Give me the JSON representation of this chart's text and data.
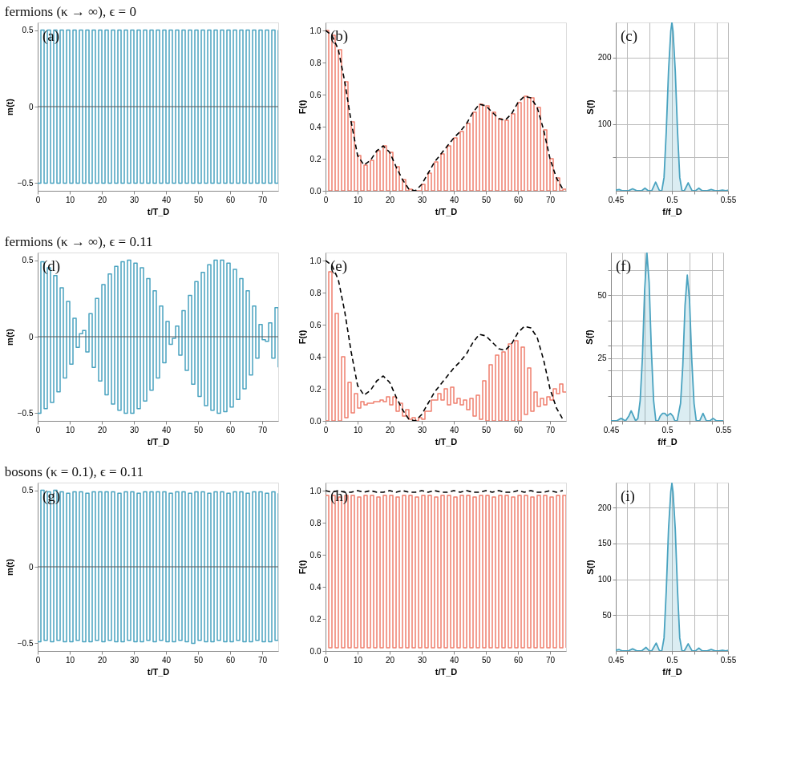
{
  "chart_data": [
    {
      "type": "step",
      "title": "fermions (κ → ∞), ϵ = 0",
      "xlabel": "t/T_D",
      "ylabel": "m(t)",
      "annotations": [
        "(a)"
      ],
      "xlim": [
        0,
        75
      ],
      "xticks": [
        0,
        10,
        20,
        30,
        40,
        50,
        60,
        70
      ],
      "ylim": [
        -0.55,
        0.55
      ],
      "yticks": [
        {
          "value": -0.5,
          "label": "−0.5"
        },
        0,
        0.5
      ],
      "ref_lines": [
        {
          "axis": "y",
          "value": 0,
          "color": "#555555"
        }
      ],
      "x": [
        0,
        1,
        2,
        3,
        4,
        5,
        6,
        7,
        8,
        9,
        10,
        11,
        12,
        13,
        14,
        15,
        16,
        17,
        18,
        19,
        20,
        21,
        22,
        23,
        24,
        25,
        26,
        27,
        28,
        29,
        30,
        31,
        32,
        33,
        34,
        35,
        36,
        37,
        38,
        39,
        40,
        41,
        42,
        43,
        44,
        45,
        46,
        47,
        48,
        49,
        50,
        51,
        52,
        53,
        54,
        55,
        56,
        57,
        58,
        59,
        60,
        61,
        62,
        63,
        64,
        65,
        66,
        67,
        68,
        69,
        70,
        71,
        72,
        73,
        74,
        75
      ],
      "series": [
        {
          "color": "#4aa3c0",
          "values": [
            -0.5,
            0.5,
            -0.5,
            0.5,
            -0.5,
            0.5,
            -0.5,
            0.5,
            -0.5,
            0.5,
            -0.5,
            0.5,
            -0.5,
            0.5,
            -0.5,
            0.5,
            -0.5,
            0.5,
            -0.5,
            0.5,
            -0.5,
            0.5,
            -0.5,
            0.5,
            -0.5,
            0.5,
            -0.5,
            0.5,
            -0.5,
            0.5,
            -0.5,
            0.5,
            -0.5,
            0.5,
            -0.5,
            0.5,
            -0.5,
            0.5,
            -0.5,
            0.5,
            -0.5,
            0.5,
            -0.5,
            0.5,
            -0.5,
            0.5,
            -0.5,
            0.5,
            -0.5,
            0.5,
            -0.5,
            0.5,
            -0.5,
            0.5,
            -0.5,
            0.5,
            -0.5,
            0.5,
            -0.5,
            0.5,
            -0.5,
            0.5,
            -0.5,
            0.5,
            -0.5,
            0.5,
            -0.5,
            0.5,
            -0.5,
            0.5,
            -0.5,
            0.5,
            -0.5,
            0.5,
            -0.5,
            0.5
          ]
        }
      ]
    },
    {
      "type": "step",
      "xlabel": "t/T_D",
      "ylabel": "F(t)",
      "annotations": [
        "(b)"
      ],
      "xlim": [
        0,
        75
      ],
      "xticks": [
        0,
        10,
        20,
        30,
        40,
        50,
        60,
        70
      ],
      "ylim": [
        0,
        1.05
      ],
      "yticks": [
        {
          "value": 0,
          "label": "0.0"
        },
        0.2,
        0.4,
        0.6,
        0.8,
        {
          "value": 1,
          "label": "1.0"
        }
      ],
      "x": [
        0,
        1,
        2,
        3,
        4,
        5,
        6,
        7,
        8,
        9,
        10,
        11,
        12,
        13,
        14,
        15,
        16,
        17,
        18,
        19,
        20,
        21,
        22,
        23,
        24,
        25,
        26,
        27,
        28,
        29,
        30,
        31,
        32,
        33,
        34,
        35,
        36,
        37,
        38,
        39,
        40,
        41,
        42,
        43,
        44,
        45,
        46,
        47,
        48,
        49,
        50,
        51,
        52,
        53,
        54,
        55,
        56,
        57,
        58,
        59,
        60,
        61,
        62,
        63,
        64,
        65,
        66,
        67,
        68,
        69,
        70,
        71,
        72,
        73,
        74,
        75
      ],
      "series": [
        {
          "color": "#f07f6e",
          "values": [
            1.0,
            0,
            0.97,
            0,
            0.88,
            0,
            0.68,
            0,
            0.43,
            0,
            0.22,
            0,
            0.16,
            0,
            0.19,
            0,
            0.25,
            0,
            0.28,
            0,
            0.24,
            0,
            0.15,
            0,
            0.07,
            0,
            0.01,
            0,
            0.0,
            0,
            0.04,
            0,
            0.11,
            0,
            0.18,
            0,
            0.23,
            0,
            0.28,
            0,
            0.33,
            0,
            0.37,
            0,
            0.42,
            0,
            0.49,
            0,
            0.54,
            0,
            0.53,
            0,
            0.49,
            0,
            0.45,
            0,
            0.44,
            0,
            0.48,
            0,
            0.55,
            0,
            0.59,
            0,
            0.58,
            0,
            0.52,
            0,
            0.38,
            0,
            0.2,
            0,
            0.08,
            0,
            0.01,
            0
          ]
        },
        {
          "type": "line",
          "line_style": "dashed",
          "color": "#000000",
          "x": [
            0,
            2,
            4,
            6,
            8,
            10,
            12,
            14,
            16,
            18,
            20,
            22,
            24,
            26,
            28,
            30,
            32,
            34,
            36,
            38,
            40,
            42,
            44,
            46,
            48,
            50,
            52,
            54,
            56,
            58,
            60,
            62,
            64,
            66,
            68,
            70,
            72,
            74
          ],
          "values": [
            1.0,
            0.97,
            0.88,
            0.68,
            0.43,
            0.22,
            0.16,
            0.19,
            0.25,
            0.28,
            0.24,
            0.15,
            0.07,
            0.01,
            0.0,
            0.04,
            0.11,
            0.18,
            0.23,
            0.28,
            0.33,
            0.37,
            0.42,
            0.49,
            0.54,
            0.53,
            0.49,
            0.45,
            0.44,
            0.48,
            0.55,
            0.59,
            0.58,
            0.52,
            0.38,
            0.2,
            0.08,
            0.01
          ]
        }
      ]
    },
    {
      "type": "area",
      "xlabel": "f/f_D",
      "ylabel": "S(f)",
      "annotations": [
        "(c)"
      ],
      "grid": true,
      "xlim": [
        0.45,
        0.55
      ],
      "xticks": [
        0.45,
        {
          "value": 0.46,
          "label": null
        },
        {
          "value": 0.48,
          "label": null
        },
        0.5,
        {
          "value": 0.52,
          "label": null
        },
        {
          "value": 0.54,
          "label": null
        },
        0.55
      ],
      "ylim": [
        0,
        253
      ],
      "yticks": [
        {
          "value": 50,
          "label": null
        },
        100,
        {
          "value": 150,
          "label": null
        },
        200
      ],
      "series": [
        {
          "color": "#4aa3c0",
          "x": [
            0.45,
            0.453,
            0.456,
            0.461,
            0.465,
            0.469,
            0.473,
            0.476,
            0.479,
            0.482,
            0.4855,
            0.489,
            0.491,
            0.493,
            0.495,
            0.497,
            0.499,
            0.5,
            0.501,
            0.503,
            0.505,
            0.507,
            0.509,
            0.511,
            0.5145,
            0.518,
            0.521,
            0.524,
            0.527,
            0.531,
            0.535,
            0.539,
            0.542,
            0.545,
            0.548,
            0.55
          ],
          "values": [
            1,
            2,
            0,
            0,
            3,
            0,
            0,
            4,
            0,
            0,
            13,
            0,
            0,
            20,
            90,
            180,
            240,
            253,
            240,
            180,
            90,
            20,
            0,
            0,
            12,
            0,
            0,
            4,
            0,
            0,
            2,
            0,
            0,
            1,
            0,
            1
          ]
        }
      ]
    },
    {
      "type": "step",
      "title": "fermions (κ → ∞), ϵ = 0.11",
      "xlabel": "t/T_D",
      "ylabel": "m(t)",
      "annotations": [
        "(d)"
      ],
      "xlim": [
        0,
        75
      ],
      "xticks": [
        0,
        10,
        20,
        30,
        40,
        50,
        60,
        70
      ],
      "ylim": [
        -0.55,
        0.55
      ],
      "yticks": [
        {
          "value": -0.5,
          "label": "−0.5"
        },
        0,
        0.5
      ],
      "ref_lines": [
        {
          "axis": "y",
          "value": 0,
          "color": "#555555"
        }
      ],
      "x": [
        0,
        1,
        2,
        3,
        4,
        5,
        6,
        7,
        8,
        9,
        10,
        11,
        12,
        13,
        14,
        15,
        16,
        17,
        18,
        19,
        20,
        21,
        22,
        23,
        24,
        25,
        26,
        27,
        28,
        29,
        30,
        31,
        32,
        33,
        34,
        35,
        36,
        37,
        38,
        39,
        40,
        41,
        42,
        43,
        44,
        45,
        46,
        47,
        48,
        49,
        50,
        51,
        52,
        53,
        54,
        55,
        56,
        57,
        58,
        59,
        60,
        61,
        62,
        63,
        64,
        65,
        66,
        67,
        68,
        69,
        70,
        71,
        72,
        73,
        74,
        75
      ],
      "series": [
        {
          "color": "#4aa3c0",
          "values": [
            -0.5,
            0.49,
            -0.47,
            0.45,
            -0.43,
            0.4,
            -0.36,
            0.32,
            -0.27,
            0.23,
            -0.18,
            0.12,
            -0.07,
            0.02,
            0.04,
            -0.1,
            0.15,
            -0.2,
            0.25,
            -0.29,
            0.34,
            -0.38,
            0.41,
            -0.44,
            0.46,
            -0.48,
            0.49,
            -0.5,
            0.5,
            -0.5,
            0.48,
            -0.47,
            0.45,
            -0.42,
            0.38,
            -0.35,
            0.3,
            -0.27,
            0.2,
            -0.17,
            0.1,
            -0.05,
            -0.01,
            0.07,
            -0.12,
            0.17,
            -0.22,
            0.27,
            -0.31,
            0.36,
            -0.39,
            0.42,
            -0.45,
            0.47,
            -0.48,
            0.5,
            -0.5,
            0.5,
            -0.49,
            0.48,
            -0.46,
            0.44,
            -0.41,
            0.38,
            -0.34,
            0.3,
            -0.25,
            0.2,
            -0.14,
            0.08,
            -0.02,
            -0.03,
            0.09,
            -0.14,
            0.19,
            -0.2
          ]
        }
      ]
    },
    {
      "type": "step",
      "xlabel": "t/T_D",
      "ylabel": "F(t)",
      "annotations": [
        "(e)"
      ],
      "xlim": [
        0,
        75
      ],
      "xticks": [
        0,
        10,
        20,
        30,
        40,
        50,
        60,
        70
      ],
      "ylim": [
        0,
        1.05
      ],
      "yticks": [
        {
          "value": 0,
          "label": "0.0"
        },
        0.2,
        0.4,
        0.6,
        0.8,
        {
          "value": 1,
          "label": "1.0"
        }
      ],
      "x": [
        0,
        1,
        2,
        3,
        4,
        5,
        6,
        7,
        8,
        9,
        10,
        11,
        12,
        13,
        14,
        15,
        16,
        17,
        18,
        19,
        20,
        21,
        22,
        23,
        24,
        25,
        26,
        27,
        28,
        29,
        30,
        31,
        32,
        33,
        34,
        35,
        36,
        37,
        38,
        39,
        40,
        41,
        42,
        43,
        44,
        45,
        46,
        47,
        48,
        49,
        50,
        51,
        52,
        53,
        54,
        55,
        56,
        57,
        58,
        59,
        60,
        61,
        62,
        63,
        64,
        65,
        66,
        67,
        68,
        69,
        70,
        71,
        72,
        73,
        74,
        75
      ],
      "series": [
        {
          "color": "#f07f6e",
          "values": [
            0.0,
            0.93,
            0.0,
            0.67,
            0.0,
            0.4,
            0.02,
            0.24,
            0.05,
            0.17,
            0.08,
            0.12,
            0.1,
            0.11,
            0.11,
            0.12,
            0.12,
            0.13,
            0.12,
            0.15,
            0.1,
            0.15,
            0.06,
            0.11,
            0.03,
            0.07,
            0.01,
            0.02,
            0.0,
            0.02,
            0.01,
            0.06,
            0.06,
            0.13,
            0.13,
            0.17,
            0.13,
            0.2,
            0.1,
            0.21,
            0.11,
            0.14,
            0.1,
            0.13,
            0.07,
            0.14,
            0.03,
            0.16,
            0.01,
            0.25,
            0.0,
            0.35,
            0.0,
            0.41,
            0.0,
            0.43,
            0.0,
            0.48,
            0.0,
            0.5,
            0.0,
            0.46,
            0.04,
            0.33,
            0.06,
            0.18,
            0.09,
            0.14,
            0.1,
            0.15,
            0.13,
            0.2,
            0.17,
            0.23,
            0.18,
            0.18
          ]
        },
        {
          "type": "line",
          "line_style": "dashed",
          "color": "#000000",
          "x": [
            0,
            2,
            4,
            6,
            8,
            10,
            12,
            14,
            16,
            18,
            20,
            22,
            24,
            26,
            28,
            30,
            32,
            34,
            36,
            38,
            40,
            42,
            44,
            46,
            48,
            50,
            52,
            54,
            56,
            58,
            60,
            62,
            64,
            66,
            68,
            70,
            72,
            74
          ],
          "values": [
            1.0,
            0.97,
            0.88,
            0.68,
            0.43,
            0.22,
            0.16,
            0.19,
            0.25,
            0.28,
            0.24,
            0.15,
            0.07,
            0.01,
            0.0,
            0.04,
            0.11,
            0.18,
            0.23,
            0.28,
            0.33,
            0.37,
            0.42,
            0.49,
            0.54,
            0.53,
            0.49,
            0.45,
            0.44,
            0.48,
            0.55,
            0.59,
            0.58,
            0.52,
            0.38,
            0.2,
            0.08,
            0.01
          ]
        }
      ]
    },
    {
      "type": "area",
      "xlabel": "f/f_D",
      "ylabel": "S(f)",
      "annotations": [
        "(f)"
      ],
      "grid": true,
      "xlim": [
        0.45,
        0.55
      ],
      "xticks": [
        0.45,
        {
          "value": 0.46,
          "label": null
        },
        {
          "value": 0.48,
          "label": null
        },
        0.5,
        {
          "value": 0.52,
          "label": null
        },
        {
          "value": 0.54,
          "label": null
        },
        0.55
      ],
      "ylim": [
        0,
        67
      ],
      "yticks": [
        {
          "value": 10,
          "label": null
        },
        {
          "value": 20,
          "label": null
        },
        25,
        {
          "value": 30,
          "label": null
        },
        {
          "value": 40,
          "label": null
        },
        50,
        {
          "value": 60,
          "label": null
        }
      ],
      "series": [
        {
          "color": "#4aa3c0",
          "x": [
            0.45,
            0.455,
            0.459,
            0.463,
            0.466,
            0.468,
            0.47,
            0.472,
            0.474,
            0.476,
            0.478,
            0.48,
            0.482,
            0.484,
            0.486,
            0.488,
            0.49,
            0.492,
            0.494,
            0.496,
            0.498,
            0.5,
            0.503,
            0.505,
            0.507,
            0.509,
            0.512,
            0.514,
            0.516,
            0.518,
            0.52,
            0.522,
            0.524,
            0.526,
            0.529,
            0.532,
            0.535,
            0.538,
            0.541,
            0.544,
            0.55
          ],
          "values": [
            0,
            0,
            1,
            0,
            2,
            4,
            2,
            0,
            1,
            8,
            25,
            52,
            67,
            55,
            28,
            8,
            0,
            0,
            2,
            3,
            3,
            2,
            3,
            2,
            0,
            0,
            7,
            22,
            46,
            58,
            48,
            24,
            7,
            0,
            0,
            3,
            0,
            0,
            1,
            0,
            0
          ]
        }
      ]
    },
    {
      "type": "step",
      "title": "bosons (κ = 0.1), ϵ = 0.11",
      "xlabel": "t/T_D",
      "ylabel": "m(t)",
      "annotations": [
        "(g)"
      ],
      "xlim": [
        0,
        75
      ],
      "xticks": [
        0,
        10,
        20,
        30,
        40,
        50,
        60,
        70
      ],
      "ylim": [
        -0.55,
        0.55
      ],
      "yticks": [
        {
          "value": -0.5,
          "label": "−0.5"
        },
        0,
        0.5
      ],
      "ref_lines": [
        {
          "axis": "y",
          "value": 0,
          "color": "#555555"
        }
      ],
      "x": [
        0,
        1,
        2,
        3,
        4,
        5,
        6,
        7,
        8,
        9,
        10,
        11,
        12,
        13,
        14,
        15,
        16,
        17,
        18,
        19,
        20,
        21,
        22,
        23,
        24,
        25,
        26,
        27,
        28,
        29,
        30,
        31,
        32,
        33,
        34,
        35,
        36,
        37,
        38,
        39,
        40,
        41,
        42,
        43,
        44,
        45,
        46,
        47,
        48,
        49,
        50,
        51,
        52,
        53,
        54,
        55,
        56,
        57,
        58,
        59,
        60,
        61,
        62,
        63,
        64,
        65,
        66,
        67,
        68,
        69,
        70,
        71,
        72,
        73,
        74,
        75
      ],
      "series": [
        {
          "color": "#4aa3c0",
          "values": [
            -0.49,
            0.5,
            -0.48,
            0.49,
            -0.49,
            0.5,
            -0.48,
            0.49,
            -0.49,
            0.48,
            -0.49,
            0.49,
            -0.48,
            0.49,
            -0.49,
            0.48,
            -0.49,
            0.49,
            -0.48,
            0.49,
            -0.49,
            0.49,
            -0.48,
            0.49,
            -0.49,
            0.48,
            -0.49,
            0.49,
            -0.48,
            0.49,
            -0.49,
            0.48,
            -0.49,
            0.49,
            -0.48,
            0.49,
            -0.49,
            0.49,
            -0.48,
            0.49,
            -0.49,
            0.48,
            -0.49,
            0.49,
            -0.48,
            0.49,
            -0.49,
            0.48,
            -0.5,
            0.49,
            -0.48,
            0.49,
            -0.49,
            0.48,
            -0.49,
            0.49,
            -0.48,
            0.49,
            -0.49,
            0.48,
            -0.49,
            0.49,
            -0.48,
            0.49,
            -0.49,
            0.48,
            -0.49,
            0.49,
            -0.48,
            0.49,
            -0.49,
            0.48,
            -0.49,
            0.49,
            -0.48,
            0.48
          ]
        }
      ]
    },
    {
      "type": "step",
      "xlabel": "t/T_D",
      "ylabel": "F(t)",
      "annotations": [
        "(h)"
      ],
      "xlim": [
        0,
        75
      ],
      "xticks": [
        0,
        10,
        20,
        30,
        40,
        50,
        60,
        70
      ],
      "ylim": [
        0,
        1.05
      ],
      "yticks": [
        {
          "value": 0,
          "label": "0.0"
        },
        0.2,
        0.4,
        0.6,
        0.8,
        {
          "value": 1,
          "label": "1.0"
        }
      ],
      "x": [
        0,
        1,
        2,
        3,
        4,
        5,
        6,
        7,
        8,
        9,
        10,
        11,
        12,
        13,
        14,
        15,
        16,
        17,
        18,
        19,
        20,
        21,
        22,
        23,
        24,
        25,
        26,
        27,
        28,
        29,
        30,
        31,
        32,
        33,
        34,
        35,
        36,
        37,
        38,
        39,
        40,
        41,
        42,
        43,
        44,
        45,
        46,
        47,
        48,
        49,
        50,
        51,
        52,
        53,
        54,
        55,
        56,
        57,
        58,
        59,
        60,
        61,
        62,
        63,
        64,
        65,
        66,
        67,
        68,
        69,
        70,
        71,
        72,
        73,
        74,
        75
      ],
      "series": [
        {
          "color": "#f07f6e",
          "values": [
            0.97,
            0.02,
            0.97,
            0.02,
            0.96,
            0.02,
            0.97,
            0.02,
            0.97,
            0.02,
            0.96,
            0.02,
            0.97,
            0.02,
            0.97,
            0.02,
            0.96,
            0.02,
            0.97,
            0.02,
            0.97,
            0.02,
            0.96,
            0.02,
            0.97,
            0.02,
            0.97,
            0.02,
            0.96,
            0.02,
            0.97,
            0.02,
            0.97,
            0.02,
            0.96,
            0.02,
            0.97,
            0.02,
            0.97,
            0.02,
            0.96,
            0.02,
            0.97,
            0.02,
            0.97,
            0.02,
            0.96,
            0.02,
            0.97,
            0.02,
            0.97,
            0.02,
            0.96,
            0.02,
            0.97,
            0.02,
            0.97,
            0.02,
            0.96,
            0.02,
            0.97,
            0.02,
            0.97,
            0.02,
            0.96,
            0.02,
            0.97,
            0.02,
            0.97,
            0.02,
            0.96,
            0.02,
            0.97,
            0.02,
            0.97,
            0.02
          ]
        },
        {
          "type": "line",
          "line_style": "dashed",
          "color": "#000000",
          "x": [
            0,
            2,
            4,
            6,
            8,
            10,
            12,
            14,
            16,
            18,
            20,
            22,
            24,
            26,
            28,
            30,
            32,
            34,
            36,
            38,
            40,
            42,
            44,
            46,
            48,
            50,
            52,
            54,
            56,
            58,
            60,
            62,
            64,
            66,
            68,
            70,
            72,
            74
          ],
          "values": [
            1.0,
            0.99,
            1.0,
            0.99,
            0.99,
            1.0,
            0.99,
            1.0,
            0.99,
            0.99,
            1.0,
            0.99,
            1.0,
            0.99,
            0.99,
            1.0,
            0.99,
            1.0,
            0.99,
            0.99,
            1.0,
            0.99,
            1.0,
            0.99,
            0.99,
            1.0,
            0.99,
            1.0,
            0.99,
            0.99,
            1.0,
            0.99,
            1.0,
            0.99,
            0.99,
            1.0,
            0.99,
            1.0
          ]
        }
      ]
    },
    {
      "type": "area",
      "xlabel": "f/f_D",
      "ylabel": "S(f)",
      "annotations": [
        "(i)"
      ],
      "grid": true,
      "xlim": [
        0.45,
        0.55
      ],
      "xticks": [
        0.45,
        {
          "value": 0.46,
          "label": null
        },
        {
          "value": 0.48,
          "label": null
        },
        0.5,
        {
          "value": 0.52,
          "label": null
        },
        {
          "value": 0.54,
          "label": null
        },
        0.55
      ],
      "ylim": [
        0,
        235
      ],
      "yticks": [
        50,
        100,
        150,
        200
      ],
      "series": [
        {
          "color": "#4aa3c0",
          "x": [
            0.45,
            0.453,
            0.456,
            0.461,
            0.465,
            0.469,
            0.473,
            0.477,
            0.48,
            0.482,
            0.486,
            0.489,
            0.491,
            0.493,
            0.495,
            0.497,
            0.499,
            0.5,
            0.501,
            0.503,
            0.505,
            0.507,
            0.509,
            0.511,
            0.5145,
            0.518,
            0.521,
            0.524,
            0.527,
            0.531,
            0.535,
            0.539,
            0.542,
            0.545,
            0.548,
            0.55
          ],
          "values": [
            1,
            2,
            0,
            0,
            3,
            0,
            0,
            5,
            0,
            0,
            11,
            0,
            0,
            18,
            85,
            170,
            222,
            234,
            222,
            170,
            85,
            18,
            0,
            0,
            10,
            0,
            0,
            4,
            0,
            0,
            2,
            0,
            0,
            1,
            0,
            1
          ]
        }
      ]
    }
  ]
}
